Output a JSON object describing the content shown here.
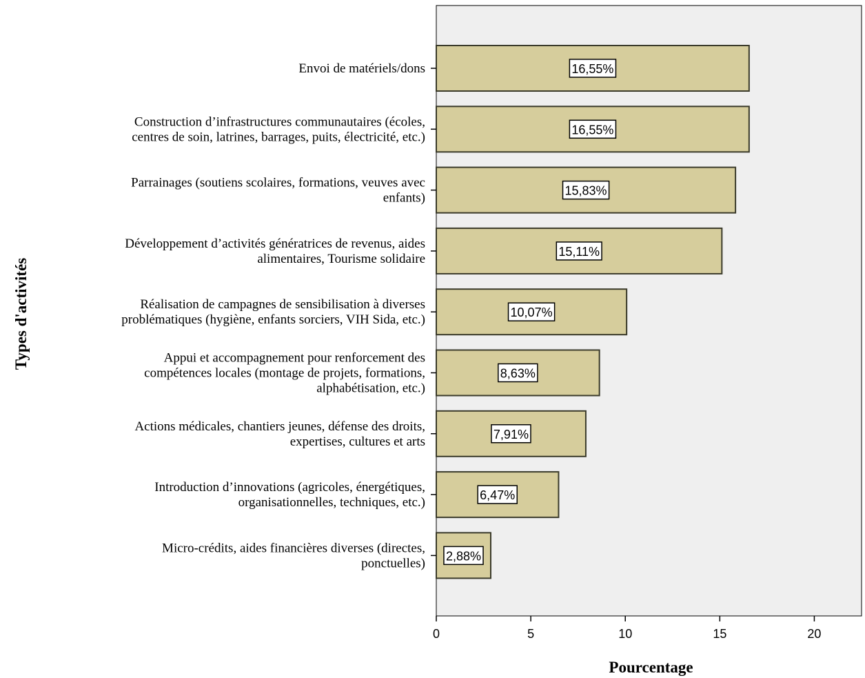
{
  "chart_data": {
    "type": "bar",
    "orientation": "horizontal",
    "xlabel": "Pourcentage",
    "ylabel": "Types d'activités",
    "xlim": [
      0,
      22.5
    ],
    "xticks": [
      0,
      5,
      10,
      15,
      20
    ],
    "xtick_labels": [
      "0",
      "5",
      "10",
      "15",
      "20"
    ],
    "grid": false,
    "categories": [
      [
        "Envoi de matériels/dons"
      ],
      [
        "Construction d’infrastructures communautaires (écoles,",
        "centres de soin, latrines, barrages, puits, électricité, etc.)"
      ],
      [
        "Parrainages (soutiens scolaires, formations, veuves avec",
        "enfants)"
      ],
      [
        "Développement d’activités génératrices de revenus, aides",
        "alimentaires, Tourisme solidaire"
      ],
      [
        "Réalisation de campagnes de sensibilisation à diverses",
        "problématiques (hygiène, enfants sorciers, VIH Sida, etc.)"
      ],
      [
        "Appui et accompagnement pour renforcement des",
        "compétences locales (montage de projets, formations,",
        "alphabétisation, etc.)"
      ],
      [
        "Actions médicales, chantiers jeunes, défense des droits,",
        "expertises, cultures et arts"
      ],
      [
        "Introduction d’innovations (agricoles, énergétiques,",
        "organisationnelles, techniques, etc.)"
      ],
      [
        "Micro-crédits, aides financières diverses (directes,",
        "ponctuelles)"
      ]
    ],
    "values": [
      16.55,
      16.55,
      15.83,
      15.11,
      10.07,
      8.63,
      7.91,
      6.47,
      2.88
    ],
    "data_labels": [
      "16,55%",
      "16,55%",
      "15,83%",
      "15,11%",
      "10,07%",
      "8,63%",
      "7,91%",
      "6,47%",
      "2,88%"
    ],
    "colors": {
      "bar_fill": "#d6cd9c",
      "bar_stroke": "#3a3a2a",
      "plot_background": "#efefef",
      "axis": "#000000"
    }
  }
}
